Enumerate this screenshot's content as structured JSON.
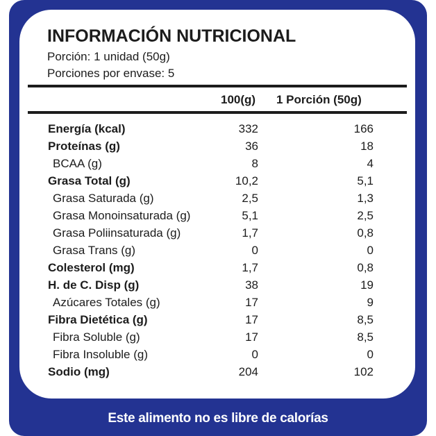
{
  "title": "INFORMACIÓN NUTRICIONAL",
  "portion": "Porción: 1 unidad (50g)",
  "servings": "Porciones por envase: 5",
  "columns": {
    "per100": "100(g)",
    "perPortion": "1 Porción (50g)"
  },
  "rows": [
    {
      "label": "Energía (kcal)",
      "v100": "332",
      "vPortion": "166"
    },
    {
      "label": "Proteínas (g)",
      "v100": "36",
      "vPortion": "18"
    },
    {
      "label": "BCAA (g)",
      "v100": "8",
      "vPortion": "4"
    },
    {
      "label": "Grasa Total (g)",
      "v100": "10,2",
      "vPortion": "5,1"
    },
    {
      "label": "Grasa Saturada (g)",
      "v100": "2,5",
      "vPortion": "1,3"
    },
    {
      "label": "Grasa Monoinsaturada (g)",
      "v100": "5,1",
      "vPortion": "2,5"
    },
    {
      "label": "Grasa Poliinsaturada (g)",
      "v100": "1,7",
      "vPortion": "0,8"
    },
    {
      "label": "Grasa Trans (g)",
      "v100": "0",
      "vPortion": "0"
    },
    {
      "label": "Colesterol (mg)",
      "v100": "1,7",
      "vPortion": "0,8"
    },
    {
      "label": "H. de C. Disp (g)",
      "v100": "38",
      "vPortion": "19"
    },
    {
      "label": "Azúcares Totales (g)",
      "v100": "17",
      "vPortion": "9"
    },
    {
      "label": "Fibra Dietética (g)",
      "v100": "17",
      "vPortion": "8,5"
    },
    {
      "label": "Fibra Soluble (g)",
      "v100": "17",
      "vPortion": "8,5"
    },
    {
      "label": "Fibra Insoluble (g)",
      "v100": "0",
      "vPortion": "0"
    },
    {
      "label": "Sodio (mg)",
      "v100": "204",
      "vPortion": "102"
    }
  ],
  "footer": "Este alimento no es libre de calorías",
  "colors": {
    "frame": "#233392",
    "text": "#1c1c1c"
  }
}
